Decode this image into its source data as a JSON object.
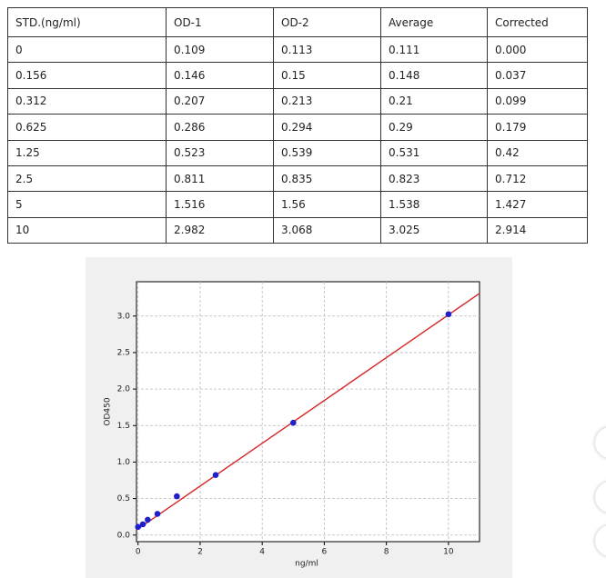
{
  "table": {
    "header": [
      "STD.(ng/ml)",
      "OD-1",
      "OD-2",
      "Average",
      "Corrected"
    ],
    "rows": [
      [
        "0",
        "0.109",
        "0.113",
        "0.111",
        "0.000"
      ],
      [
        "0.156",
        "0.146",
        "0.15",
        "0.148",
        "0.037"
      ],
      [
        "0.312",
        "0.207",
        "0.213",
        "0.21",
        "0.099"
      ],
      [
        "0.625",
        "0.286",
        "0.294",
        "0.29",
        "0.179"
      ],
      [
        "1.25",
        "0.523",
        "0.539",
        "0.531",
        "0.42"
      ],
      [
        "2.5",
        "0.811",
        "0.835",
        "0.823",
        "0.712"
      ],
      [
        "5",
        "1.516",
        "1.56",
        "1.538",
        "1.427"
      ],
      [
        "10",
        "2.982",
        "3.068",
        "3.025",
        "2.914"
      ]
    ]
  },
  "chart_data": {
    "type": "scatter",
    "x_label": "ng/ml",
    "y_label": "OD450",
    "x": [
      0,
      0.156,
      0.312,
      0.625,
      1.25,
      2.5,
      5,
      10
    ],
    "values": [
      0.111,
      0.148,
      0.21,
      0.29,
      0.531,
      0.823,
      1.538,
      3.025
    ],
    "color": "#1f1fcc",
    "fit_line": {
      "color": "#d62728",
      "x": [
        -0.05,
        11
      ],
      "values": [
        0.07,
        3.31
      ]
    },
    "xlim": [
      -0.05,
      11
    ],
    "ylim": [
      -0.09,
      3.47
    ],
    "xticks": [
      0,
      2,
      4,
      6,
      8,
      10
    ],
    "yticks": [
      {
        "value": 0,
        "label": "0.0"
      },
      0.5,
      {
        "value": 1,
        "label": "1.0"
      },
      1.5,
      {
        "value": 2,
        "label": "2.0"
      },
      2.5,
      {
        "value": 3,
        "label": "3.0"
      }
    ],
    "grid": true
  }
}
